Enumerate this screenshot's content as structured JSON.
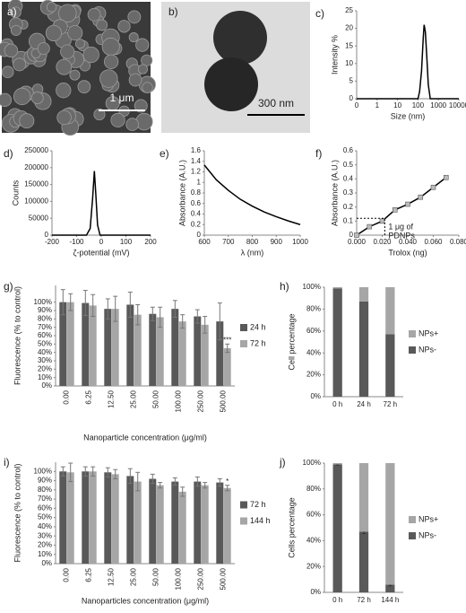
{
  "images": [
    {
      "label": "a)",
      "scale_bar": "1 μm"
    },
    {
      "label": "b)",
      "scale_bar": "300 nm"
    }
  ],
  "chart_data": [
    {
      "type": "line",
      "panel": "c)",
      "xlabel": "Size (nm)",
      "ylabel": "Intensity %",
      "log_x": true,
      "x": [
        0.1,
        100,
        120,
        150,
        180,
        200,
        230,
        270,
        320,
        400,
        10000
      ],
      "series": [
        {
          "color": "#000000",
          "values": [
            0,
            0,
            2,
            8,
            17,
            21,
            19,
            12,
            4,
            0,
            0
          ]
        }
      ],
      "xlim": [
        0.1,
        10000
      ],
      "xticks": [
        {
          "value": 0.1,
          "label": "0"
        },
        1,
        10,
        100,
        1000,
        10000
      ],
      "ylim": [
        0,
        25
      ],
      "yticks": [
        0,
        5,
        10,
        15,
        20,
        25
      ],
      "grid": false
    },
    {
      "type": "line",
      "panel": "d)",
      "xlabel": "ζ-potential (mV)",
      "ylabel": "Counts",
      "x": [
        -200,
        -60,
        -45,
        -35,
        -28,
        -22,
        -15,
        -5,
        200
      ],
      "series": [
        {
          "color": "#000000",
          "values": [
            0,
            0,
            20000,
            110000,
            190000,
            120000,
            30000,
            0,
            0
          ]
        }
      ],
      "xlim": [
        -200,
        200
      ],
      "xticks": [
        -200,
        -100,
        0,
        100,
        200
      ],
      "ylim": [
        0,
        250000
      ],
      "yticks": [
        0,
        50000,
        100000,
        150000,
        200000,
        250000
      ],
      "grid": false
    },
    {
      "type": "line",
      "panel": "e)",
      "xlabel": "λ (nm)",
      "ylabel": "Absorbance (A.U.)",
      "x": [
        600,
        650,
        700,
        750,
        800,
        850,
        900,
        950,
        1000
      ],
      "series": [
        {
          "color": "#000000",
          "values": [
            1.33,
            1.05,
            0.85,
            0.68,
            0.55,
            0.44,
            0.35,
            0.27,
            0.2
          ]
        }
      ],
      "xlim": [
        600,
        1000
      ],
      "xticks": [
        600,
        700,
        800,
        900,
        1000
      ],
      "ylim": [
        0,
        1.6
      ],
      "yticks": [
        0,
        0.2,
        0.4,
        0.6,
        0.8,
        1,
        1.2,
        1.4,
        1.6
      ],
      "grid": false
    },
    {
      "type": "line",
      "panel": "f)",
      "xlabel": "Trolox (ng)",
      "ylabel": "Absorbance (A.U.)",
      "x": [
        0,
        0.01,
        0.02,
        0.03,
        0.04,
        0.05,
        0.06,
        0.07
      ],
      "series": [
        {
          "color": "#000000",
          "marker": true,
          "values": [
            0,
            0.06,
            0.1,
            0.18,
            0.22,
            0.27,
            0.34,
            0.41
          ]
        }
      ],
      "xlim": [
        0,
        0.08
      ],
      "xticks": [
        {
          "value": 0,
          "label": "0.000"
        },
        {
          "value": 0.02,
          "label": "0.020"
        },
        {
          "value": 0.04,
          "label": "0.040"
        },
        {
          "value": 0.06,
          "label": "0.060"
        },
        {
          "value": 0.08,
          "label": "0.080"
        }
      ],
      "ylim": [
        0,
        0.6
      ],
      "yticks": [
        0,
        0.1,
        0.2,
        0.3,
        0.4,
        0.5,
        0.6
      ],
      "grid": false,
      "reference": {
        "x": 0.022,
        "y": 0.12
      },
      "annotation": [
        "1 μg of",
        "PDNPs"
      ]
    },
    {
      "type": "bar",
      "panel": "g)",
      "xlabel": "Nanoparticle concentration (μg/ml)",
      "ylabel": "Fluorescence (% to control)",
      "categories": [
        "0.00",
        "6.25",
        "12.50",
        "25.00",
        "50.00",
        "100.00",
        "250.00",
        "500.00"
      ],
      "series": [
        {
          "name": "24 h",
          "color": "#595959",
          "values": [
            100,
            99,
            92,
            97,
            86,
            92,
            83,
            77
          ],
          "errors": [
            15,
            15,
            12,
            15,
            8,
            10,
            8,
            22
          ]
        },
        {
          "name": "72 h",
          "color": "#a6a6a6",
          "values": [
            100,
            96,
            92,
            85,
            82,
            77,
            73,
            45
          ],
          "errors": [
            10,
            13,
            15,
            12,
            12,
            8,
            10,
            5
          ],
          "significance": [
            null,
            null,
            null,
            null,
            null,
            null,
            null,
            "***"
          ]
        }
      ],
      "ylim": [
        0,
        120
      ],
      "yticks": [
        {
          "value": 0,
          "label": "0%"
        },
        {
          "value": 10,
          "label": "10%"
        },
        {
          "value": 20,
          "label": "20%"
        },
        {
          "value": 30,
          "label": "30%"
        },
        {
          "value": 40,
          "label": "40%"
        },
        {
          "value": 50,
          "label": "50%"
        },
        {
          "value": 60,
          "label": "60%"
        },
        {
          "value": 70,
          "label": "70%"
        },
        {
          "value": 80,
          "label": "80%"
        },
        {
          "value": 90,
          "label": "90%"
        },
        {
          "value": 100,
          "label": "100%"
        }
      ],
      "legend": "right",
      "grid": false
    },
    {
      "type": "stacked_bar",
      "panel": "h)",
      "ylabel": "Cell percentage",
      "categories": [
        "0 h",
        "24 h",
        "72 h"
      ],
      "series": [
        {
          "name": "NPs-",
          "color": "#595959",
          "values": [
            99,
            87,
            57
          ]
        },
        {
          "name": "NPs+",
          "color": "#a6a6a6",
          "values": [
            1,
            13,
            43
          ]
        }
      ],
      "ylim": [
        0,
        100
      ],
      "yticks": [
        {
          "value": 0,
          "label": "0%"
        },
        {
          "value": 20,
          "label": "20%"
        },
        {
          "value": 40,
          "label": "40%"
        },
        {
          "value": 60,
          "label": "60%"
        },
        {
          "value": 80,
          "label": "80%"
        },
        {
          "value": 100,
          "label": "100%"
        }
      ],
      "legend": "right",
      "grid": false
    },
    {
      "type": "bar",
      "panel": "i)",
      "xlabel": "Nanoparticles concentration (μg/ml)",
      "ylabel": "Fluorescence (% to control)",
      "categories": [
        "0.00",
        "6.25",
        "12.50",
        "25.00",
        "50.00",
        "100.00",
        "250.00",
        "500.00"
      ],
      "series": [
        {
          "name": "72 h",
          "color": "#595959",
          "values": [
            100,
            100,
            99,
            95,
            92,
            89,
            89,
            88
          ],
          "errors": [
            5,
            5,
            5,
            8,
            5,
            4,
            5,
            4
          ]
        },
        {
          "name": "144 h",
          "color": "#a6a6a6",
          "values": [
            99,
            100,
            97,
            89,
            85,
            78,
            85,
            82
          ],
          "errors": [
            10,
            5,
            5,
            10,
            3,
            5,
            3,
            3
          ],
          "significance": [
            null,
            null,
            null,
            null,
            null,
            null,
            null,
            "*"
          ]
        }
      ],
      "ylim": [
        0,
        110
      ],
      "yticks": [
        {
          "value": 0,
          "label": "0%"
        },
        {
          "value": 10,
          "label": "10%"
        },
        {
          "value": 20,
          "label": "20%"
        },
        {
          "value": 30,
          "label": "30%"
        },
        {
          "value": 40,
          "label": "40%"
        },
        {
          "value": 50,
          "label": "50%"
        },
        {
          "value": 60,
          "label": "60%"
        },
        {
          "value": 70,
          "label": "70%"
        },
        {
          "value": 80,
          "label": "80%"
        },
        {
          "value": 90,
          "label": "90%"
        },
        {
          "value": 100,
          "label": "100%"
        }
      ],
      "legend": "right",
      "grid": false
    },
    {
      "type": "stacked_bar",
      "panel": "j)",
      "ylabel": "Cells percentage",
      "categories": [
        "0 h",
        "72 h",
        "144 h"
      ],
      "series": [
        {
          "name": "NPs-",
          "color": "#595959",
          "values": [
            99,
            47,
            6
          ],
          "errors": [
            0.5,
            1.5,
            1
          ]
        },
        {
          "name": "NPs+",
          "color": "#a6a6a6",
          "values": [
            1,
            53,
            94
          ]
        }
      ],
      "ylim": [
        0,
        100
      ],
      "yticks": [
        {
          "value": 0,
          "label": "0%"
        },
        {
          "value": 20,
          "label": "20%"
        },
        {
          "value": 40,
          "label": "40%"
        },
        {
          "value": 60,
          "label": "60%"
        },
        {
          "value": 80,
          "label": "80%"
        },
        {
          "value": 100,
          "label": "100%"
        }
      ],
      "legend": "right",
      "grid": false
    }
  ]
}
